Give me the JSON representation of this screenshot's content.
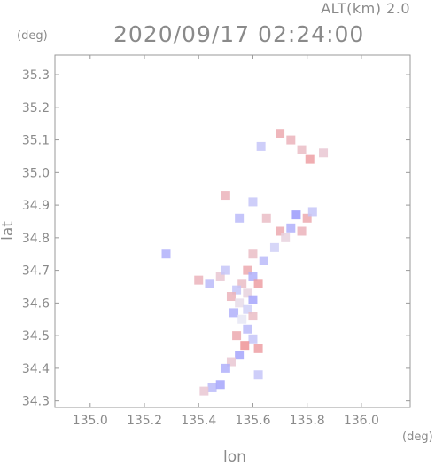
{
  "header": {
    "alt_label": "ALT(km) 2.0",
    "datetime": "2020/09/17 02:24:00"
  },
  "chart_data": {
    "type": "heatmap",
    "title": "2020/09/17 02:24:00",
    "xlabel": "lon",
    "ylabel": "lat",
    "x_unit": "(deg)",
    "y_unit": "(deg)",
    "xlim": [
      134.87,
      136.18
    ],
    "ylim": [
      34.28,
      35.36
    ],
    "x_ticks": [
      "135.0",
      "135.2",
      "135.4",
      "135.6",
      "135.8",
      "136.0"
    ],
    "x_tick_values": [
      135.0,
      135.2,
      135.4,
      135.6,
      135.8,
      136.0
    ],
    "y_ticks": [
      "34.3",
      "34.4",
      "34.5",
      "34.6",
      "34.7",
      "34.8",
      "34.9",
      "35.0",
      "35.1",
      "35.2",
      "35.3"
    ],
    "y_tick_values": [
      34.3,
      34.4,
      34.5,
      34.6,
      34.7,
      34.8,
      34.9,
      35.0,
      35.1,
      35.2,
      35.3
    ],
    "grid": false,
    "colors": {
      "positive": "#f08080",
      "negative": "#7a7aff",
      "neutral": "#e6e6f5",
      "frame": "#999999"
    },
    "points": [
      {
        "lon": 135.58,
        "lat": 34.7,
        "v": 0.6
      },
      {
        "lon": 135.6,
        "lat": 34.68,
        "v": -0.5
      },
      {
        "lon": 135.56,
        "lat": 34.66,
        "v": 0.4
      },
      {
        "lon": 135.62,
        "lat": 34.66,
        "v": 0.7
      },
      {
        "lon": 135.54,
        "lat": 34.64,
        "v": -0.3
      },
      {
        "lon": 135.58,
        "lat": 34.63,
        "v": 0.2
      },
      {
        "lon": 135.52,
        "lat": 34.62,
        "v": 0.5
      },
      {
        "lon": 135.6,
        "lat": 34.61,
        "v": -0.6
      },
      {
        "lon": 135.55,
        "lat": 34.6,
        "v": 0.1
      },
      {
        "lon": 135.58,
        "lat": 34.58,
        "v": -0.2
      },
      {
        "lon": 135.53,
        "lat": 34.57,
        "v": -0.5
      },
      {
        "lon": 135.6,
        "lat": 34.56,
        "v": 0.4
      },
      {
        "lon": 135.56,
        "lat": 34.55,
        "v": 0.0
      },
      {
        "lon": 135.58,
        "lat": 34.52,
        "v": -0.4
      },
      {
        "lon": 135.54,
        "lat": 34.5,
        "v": 0.6
      },
      {
        "lon": 135.6,
        "lat": 34.49,
        "v": -0.3
      },
      {
        "lon": 135.57,
        "lat": 34.47,
        "v": 0.8
      },
      {
        "lon": 135.62,
        "lat": 34.46,
        "v": 0.7
      },
      {
        "lon": 135.55,
        "lat": 34.44,
        "v": -0.6
      },
      {
        "lon": 135.52,
        "lat": 34.42,
        "v": 0.3
      },
      {
        "lon": 135.5,
        "lat": 34.4,
        "v": -0.5
      },
      {
        "lon": 135.45,
        "lat": 34.34,
        "v": -0.4
      },
      {
        "lon": 135.42,
        "lat": 34.33,
        "v": 0.3
      },
      {
        "lon": 135.48,
        "lat": 34.35,
        "v": -0.6
      },
      {
        "lon": 135.62,
        "lat": 34.38,
        "v": -0.3
      },
      {
        "lon": 135.4,
        "lat": 34.67,
        "v": 0.5
      },
      {
        "lon": 135.44,
        "lat": 34.66,
        "v": -0.4
      },
      {
        "lon": 135.48,
        "lat": 34.68,
        "v": 0.3
      },
      {
        "lon": 135.5,
        "lat": 34.7,
        "v": -0.3
      },
      {
        "lon": 135.6,
        "lat": 34.75,
        "v": 0.4
      },
      {
        "lon": 135.64,
        "lat": 34.73,
        "v": -0.4
      },
      {
        "lon": 135.7,
        "lat": 34.82,
        "v": 0.6
      },
      {
        "lon": 135.74,
        "lat": 34.83,
        "v": -0.5
      },
      {
        "lon": 135.78,
        "lat": 34.82,
        "v": 0.5
      },
      {
        "lon": 135.76,
        "lat": 34.87,
        "v": -0.7
      },
      {
        "lon": 135.8,
        "lat": 34.86,
        "v": 0.6
      },
      {
        "lon": 135.82,
        "lat": 34.88,
        "v": -0.3
      },
      {
        "lon": 135.72,
        "lat": 34.8,
        "v": 0.2
      },
      {
        "lon": 135.68,
        "lat": 34.77,
        "v": -0.2
      },
      {
        "lon": 135.65,
        "lat": 34.86,
        "v": 0.4
      },
      {
        "lon": 135.55,
        "lat": 34.86,
        "v": -0.4
      },
      {
        "lon": 135.5,
        "lat": 34.93,
        "v": 0.5
      },
      {
        "lon": 135.6,
        "lat": 34.91,
        "v": -0.3
      },
      {
        "lon": 135.7,
        "lat": 35.12,
        "v": 0.6
      },
      {
        "lon": 135.74,
        "lat": 35.1,
        "v": 0.5
      },
      {
        "lon": 135.78,
        "lat": 35.07,
        "v": 0.4
      },
      {
        "lon": 135.81,
        "lat": 35.04,
        "v": 0.7
      },
      {
        "lon": 135.86,
        "lat": 35.06,
        "v": 0.3
      },
      {
        "lon": 135.63,
        "lat": 35.08,
        "v": -0.3
      },
      {
        "lon": 135.28,
        "lat": 34.75,
        "v": -0.5
      }
    ]
  }
}
